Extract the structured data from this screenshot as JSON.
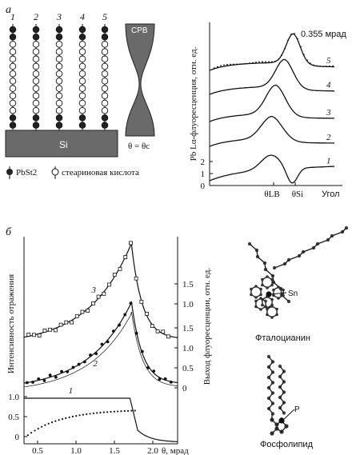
{
  "panel_a": {
    "label": "a",
    "schematic": {
      "chain_numbers": [
        "1",
        "2",
        "3",
        "4",
        "5"
      ],
      "substrate": "Si",
      "beam_label": "СРВ",
      "angle_label": "θ = θc",
      "legend_pbst": "PbSt2",
      "legend_acid": "стеариновая кислота"
    },
    "chart_data": {
      "type": "line",
      "ylabel": "Pb Lα-флуоресценция, отн. ед.",
      "xlabel": "Угол",
      "x_ticks": [
        "θLB",
        "θSi"
      ],
      "y_ticks": [
        "0",
        "1",
        "2"
      ],
      "annotation": "0.355 мрад",
      "series": [
        {
          "name": "1"
        },
        {
          "name": "2"
        },
        {
          "name": "3"
        },
        {
          "name": "4"
        },
        {
          "name": "5"
        }
      ]
    }
  },
  "panel_b": {
    "label": "б",
    "chart_data": {
      "type": "line",
      "ylabel_left": "Интенсивность отражения",
      "ylabel_right": "Выход флуоресценции, отн. ед.",
      "xlabel": "θ, мрад",
      "x_ticks": [
        "0.5",
        "1.0",
        "1.5",
        "2.0"
      ],
      "y_ticks_left": [
        "0",
        "0.5",
        "1.0"
      ],
      "y_ticks_right": [
        "0",
        "0.5",
        "1.0",
        "1.5"
      ],
      "xlim": [
        0.3,
        2.3
      ],
      "series": [
        {
          "name": "1"
        },
        {
          "name": "2"
        },
        {
          "name": "3"
        }
      ]
    },
    "molecules": {
      "phthalocyanine_label": "Фталоцианин",
      "phthalocyanine_atom": "Sn",
      "phospholipid_label": "Фосфолипид",
      "phospholipid_atom": "P"
    }
  }
}
